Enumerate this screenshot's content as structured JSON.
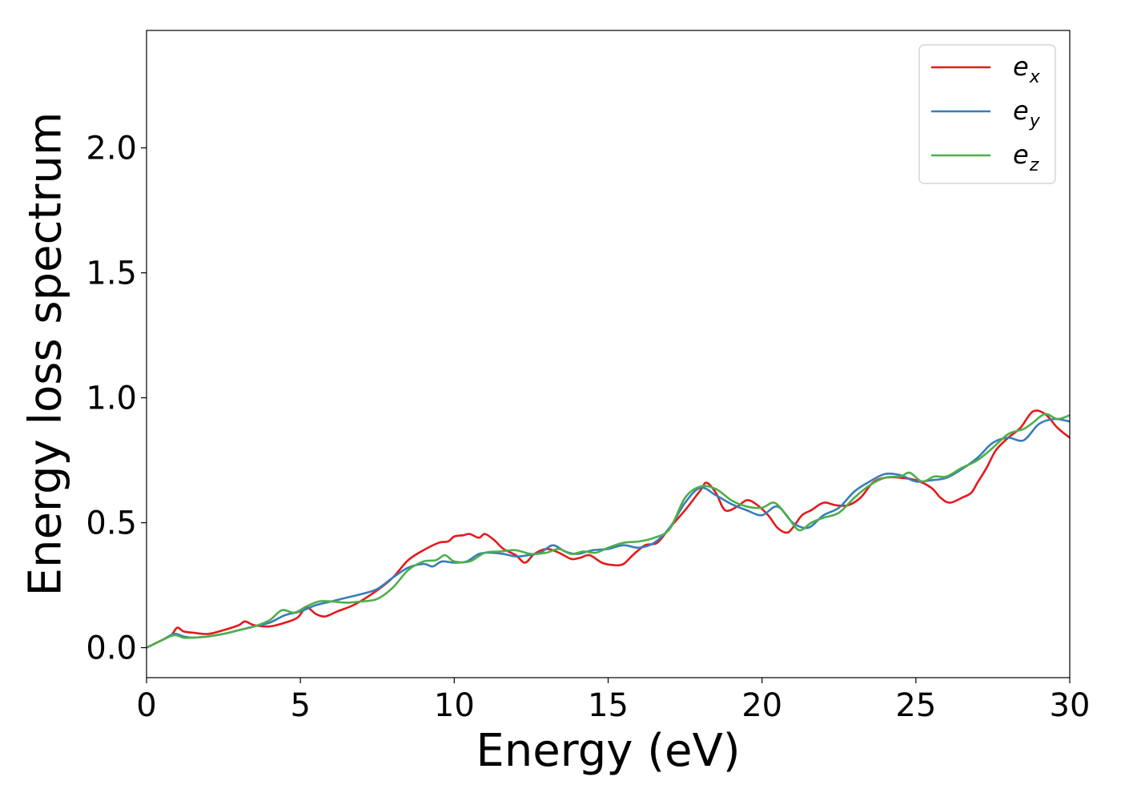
{
  "chart_data": {
    "type": "line",
    "title": "",
    "xlabel": "Energy (eV)",
    "ylabel": "Energy loss spectrum",
    "xlim": [
      0,
      30
    ],
    "ylim": [
      -0.12,
      2.47
    ],
    "xticks": [
      0,
      5,
      10,
      15,
      20,
      25,
      30
    ],
    "yticks": [
      0.0,
      0.5,
      1.0,
      1.5,
      2.0
    ],
    "xtick_labels": [
      "0",
      "5",
      "10",
      "15",
      "20",
      "25",
      "30"
    ],
    "ytick_labels": [
      "0.0",
      "0.5",
      "1.0",
      "1.5",
      "2.0"
    ],
    "grid": false,
    "legend_position": "top-right",
    "series": [
      {
        "name": "e",
        "subscript": "x",
        "color": "#e41a1c",
        "x": [
          0,
          0.5,
          0.8,
          1.0,
          1.2,
          1.5,
          2.0,
          2.5,
          3.0,
          3.2,
          3.5,
          4.0,
          4.5,
          4.9,
          5.2,
          5.5,
          5.8,
          6.2,
          6.8,
          7.5,
          8.0,
          8.5,
          9.0,
          9.5,
          9.8,
          10.0,
          10.3,
          10.5,
          10.8,
          11.0,
          11.3,
          11.6,
          12.0,
          12.3,
          12.6,
          13.0,
          13.4,
          13.8,
          14.1,
          14.4,
          14.8,
          15.2,
          15.5,
          15.8,
          16.2,
          16.6,
          17.0,
          17.5,
          18.0,
          18.2,
          18.5,
          18.8,
          19.2,
          19.5,
          19.8,
          20.2,
          20.5,
          20.8,
          21.0,
          21.3,
          21.6,
          22.0,
          22.4,
          22.8,
          23.2,
          23.6,
          24.0,
          24.5,
          25.0,
          25.5,
          25.8,
          26.1,
          26.5,
          26.8,
          27.0,
          27.3,
          27.6,
          28.0,
          28.4,
          28.8,
          29.2,
          29.6,
          30.0
        ],
        "values": [
          0.0,
          0.03,
          0.05,
          0.08,
          0.065,
          0.06,
          0.055,
          0.07,
          0.09,
          0.105,
          0.09,
          0.085,
          0.1,
          0.12,
          0.16,
          0.135,
          0.125,
          0.145,
          0.175,
          0.23,
          0.28,
          0.35,
          0.39,
          0.42,
          0.425,
          0.445,
          0.45,
          0.455,
          0.44,
          0.455,
          0.43,
          0.395,
          0.37,
          0.34,
          0.375,
          0.395,
          0.38,
          0.355,
          0.36,
          0.37,
          0.34,
          0.33,
          0.335,
          0.37,
          0.41,
          0.42,
          0.48,
          0.55,
          0.63,
          0.66,
          0.62,
          0.55,
          0.565,
          0.59,
          0.575,
          0.53,
          0.48,
          0.46,
          0.48,
          0.53,
          0.55,
          0.58,
          0.57,
          0.57,
          0.6,
          0.66,
          0.68,
          0.68,
          0.67,
          0.64,
          0.6,
          0.58,
          0.6,
          0.62,
          0.66,
          0.72,
          0.79,
          0.84,
          0.88,
          0.945,
          0.935,
          0.88,
          0.84
        ]
      },
      {
        "name": "e",
        "subscript": "y",
        "color": "#377eb8",
        "x": [
          0,
          0.5,
          0.9,
          1.2,
          1.5,
          2.0,
          2.5,
          3.0,
          3.5,
          4.0,
          4.5,
          5.0,
          5.5,
          6.0,
          6.5,
          7.0,
          7.5,
          8.0,
          8.5,
          9.0,
          9.3,
          9.6,
          10.0,
          10.4,
          10.8,
          11.2,
          11.6,
          12.0,
          12.4,
          12.8,
          13.2,
          13.6,
          14.0,
          14.5,
          15.0,
          15.5,
          16.0,
          16.5,
          17.0,
          17.5,
          18.0,
          18.5,
          19.0,
          19.5,
          20.0,
          20.5,
          21.0,
          21.5,
          22.0,
          22.5,
          23.0,
          23.5,
          24.0,
          24.5,
          25.0,
          25.5,
          26.0,
          26.5,
          27.0,
          27.5,
          28.0,
          28.5,
          29.0,
          29.5,
          30.0
        ],
        "values": [
          0.0,
          0.03,
          0.055,
          0.045,
          0.04,
          0.045,
          0.055,
          0.07,
          0.085,
          0.1,
          0.13,
          0.145,
          0.17,
          0.185,
          0.2,
          0.215,
          0.235,
          0.28,
          0.32,
          0.335,
          0.325,
          0.345,
          0.34,
          0.345,
          0.375,
          0.38,
          0.375,
          0.365,
          0.37,
          0.38,
          0.41,
          0.385,
          0.375,
          0.39,
          0.395,
          0.41,
          0.4,
          0.42,
          0.48,
          0.58,
          0.64,
          0.61,
          0.575,
          0.55,
          0.53,
          0.565,
          0.5,
          0.48,
          0.53,
          0.56,
          0.625,
          0.665,
          0.695,
          0.69,
          0.665,
          0.67,
          0.68,
          0.715,
          0.76,
          0.82,
          0.84,
          0.83,
          0.895,
          0.915,
          0.905
        ]
      },
      {
        "name": "e",
        "subscript": "z",
        "color": "#4daf4a",
        "x": [
          0,
          0.5,
          0.9,
          1.2,
          1.5,
          2.0,
          2.5,
          3.0,
          3.5,
          4.0,
          4.4,
          4.8,
          5.2,
          5.6,
          6.0,
          6.5,
          7.0,
          7.5,
          8.0,
          8.5,
          9.0,
          9.4,
          9.7,
          10.0,
          10.5,
          11.0,
          11.5,
          12.0,
          12.5,
          13.0,
          13.4,
          13.8,
          14.2,
          14.6,
          15.0,
          15.5,
          16.0,
          16.5,
          17.0,
          17.5,
          18.0,
          18.5,
          19.0,
          19.5,
          20.0,
          20.4,
          20.8,
          21.2,
          21.6,
          22.0,
          22.5,
          23.0,
          23.5,
          24.0,
          24.5,
          24.8,
          25.2,
          25.6,
          26.0,
          26.5,
          27.0,
          27.5,
          28.0,
          28.5,
          28.8,
          29.2,
          29.6,
          30.0
        ],
        "values": [
          0.0,
          0.03,
          0.05,
          0.04,
          0.04,
          0.045,
          0.055,
          0.07,
          0.085,
          0.11,
          0.15,
          0.14,
          0.165,
          0.185,
          0.185,
          0.18,
          0.185,
          0.195,
          0.24,
          0.31,
          0.345,
          0.35,
          0.37,
          0.345,
          0.345,
          0.38,
          0.385,
          0.39,
          0.375,
          0.38,
          0.395,
          0.375,
          0.385,
          0.38,
          0.4,
          0.42,
          0.425,
          0.44,
          0.475,
          0.6,
          0.645,
          0.635,
          0.59,
          0.565,
          0.56,
          0.58,
          0.53,
          0.47,
          0.5,
          0.52,
          0.54,
          0.6,
          0.65,
          0.68,
          0.685,
          0.7,
          0.665,
          0.685,
          0.685,
          0.72,
          0.75,
          0.8,
          0.855,
          0.875,
          0.9,
          0.935,
          0.915,
          0.93
        ]
      }
    ]
  }
}
